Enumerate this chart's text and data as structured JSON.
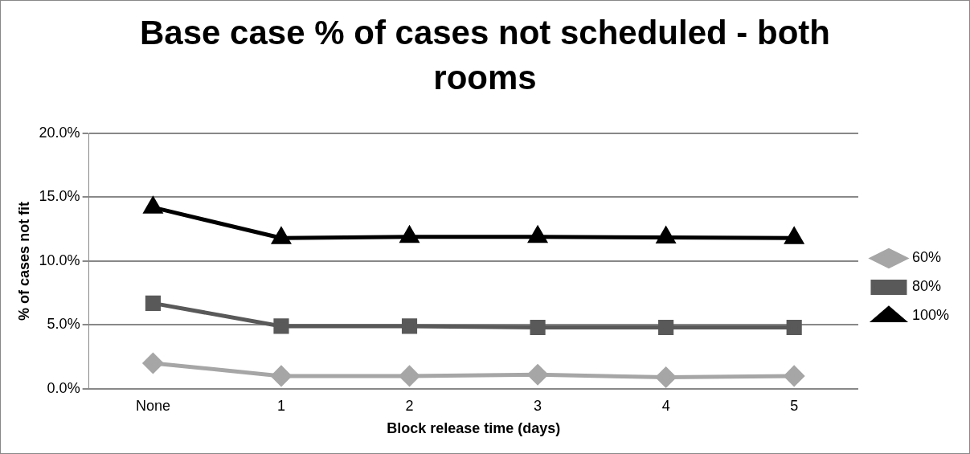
{
  "chart_data": {
    "type": "line",
    "title": "Base case % of cases not scheduled - both rooms",
    "xlabel": "Block release time (days)",
    "ylabel": "% of cases not fit",
    "categories": [
      "None",
      "1",
      "2",
      "3",
      "4",
      "5"
    ],
    "series": [
      {
        "name": "60%",
        "color": "#a6a6a6",
        "marker": "diamond",
        "values": [
          2.0,
          1.0,
          1.0,
          1.1,
          0.9,
          1.0
        ]
      },
      {
        "name": "80%",
        "color": "#595959",
        "marker": "square",
        "values": [
          6.7,
          4.9,
          4.9,
          4.8,
          4.8,
          4.8
        ]
      },
      {
        "name": "100%",
        "color": "#000000",
        "marker": "triangle",
        "values": [
          14.2,
          11.8,
          11.9,
          11.9,
          11.85,
          11.8
        ]
      }
    ],
    "ylim": [
      0,
      20
    ],
    "yticks": [
      {
        "value": 0,
        "label": "0.0%"
      },
      {
        "value": 5,
        "label": "5.0%"
      },
      {
        "value": 10,
        "label": "10.0%"
      },
      {
        "value": 15,
        "label": "15.0%"
      },
      {
        "value": 20,
        "label": "20.0%"
      }
    ],
    "grid": "y",
    "legend": "right"
  }
}
